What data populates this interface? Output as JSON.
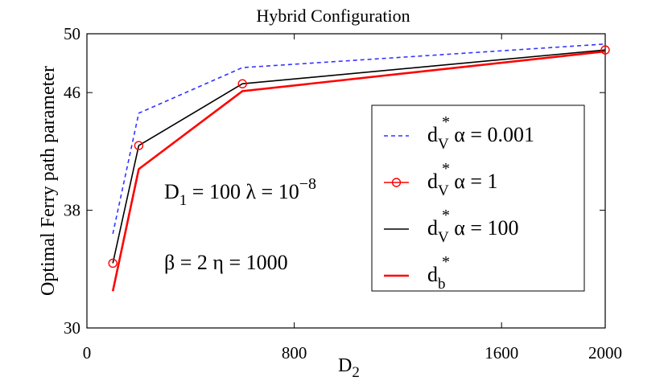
{
  "chart_data": {
    "type": "line",
    "title": "Hybrid Configuration",
    "xlabel": {
      "base": "D",
      "sub": "2"
    },
    "ylabel": "Optimal Ferry path parameter",
    "xlim": [
      0,
      2000
    ],
    "ylim": [
      30,
      50
    ],
    "xticks": [
      0,
      800,
      1600,
      2000
    ],
    "yticks": [
      30,
      38,
      46,
      50
    ],
    "xtick_labels": [
      "0",
      "800",
      "1600",
      "2000"
    ],
    "ytick_labels": [
      "30",
      "38",
      "46",
      "50"
    ],
    "grid": false,
    "legend_position": "right",
    "annotations": [
      {
        "id": "a1",
        "parts": {
          "d1": "D",
          "d1sub": "1",
          "d1val": " = 100 λ = 10",
          "exp": "−8"
        }
      },
      {
        "id": "a2",
        "text": "β = 2  η = 1000"
      }
    ],
    "series": [
      {
        "id": "s1",
        "symbol": "d",
        "sub": "V",
        "sup": "*",
        "suffix": "  α = 0.001",
        "color": "#3333ff",
        "dash": true,
        "marker": null,
        "x": [
          100,
          200,
          600,
          2000
        ],
        "y": [
          36.4,
          44.6,
          47.7,
          49.3
        ]
      },
      {
        "id": "s2",
        "symbol": "d",
        "sub": "V",
        "sup": "*",
        "suffix": "  α = 1",
        "color": "#ff0000",
        "dash": false,
        "marker": "circle",
        "x": [
          100,
          200,
          600,
          2000
        ],
        "y": [
          34.4,
          42.4,
          46.6,
          48.9
        ]
      },
      {
        "id": "s3",
        "symbol": "d",
        "sub": "V",
        "sup": "*",
        "suffix": "  α = 100",
        "color": "#000000",
        "dash": false,
        "marker": null,
        "x": [
          100,
          200,
          600,
          2000
        ],
        "y": [
          34.4,
          42.4,
          46.6,
          48.9
        ]
      },
      {
        "id": "s4",
        "symbol": "d",
        "sub": "b",
        "sup": "*",
        "suffix": "",
        "color": "#ff0000",
        "dash": false,
        "marker": null,
        "x": [
          100,
          200,
          600,
          2000
        ],
        "y": [
          32.5,
          40.8,
          46.1,
          48.8
        ]
      }
    ]
  }
}
